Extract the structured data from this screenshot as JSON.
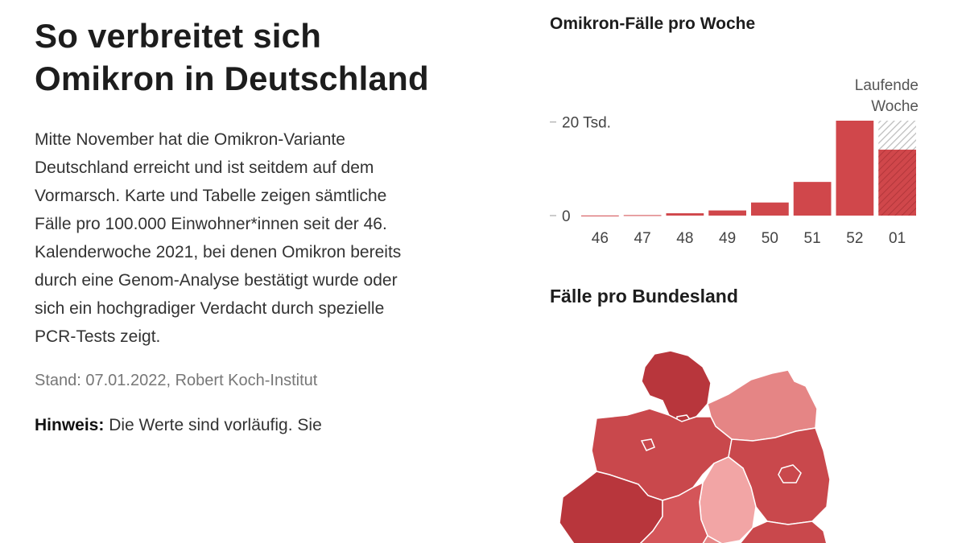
{
  "article": {
    "headline": "So verbreitet sich Omikron in Deutschland",
    "intro": "Mitte November hat die Omikron-Variante Deutschland erreicht und ist seitdem auf dem Vormarsch. Karte und Tabelle zeigen sämtliche Fälle pro 100.000 Einwohner*innen seit der 46. Kalenderwoche 2021, bei denen Omikron bereits durch eine Genom-Analyse bestätigt wurde oder sich ein hochgradiger Verdacht durch spezielle PCR-Tests zeigt.",
    "source": "Stand: 07.01.2022, Robert Koch-Institut",
    "note_label": "Hinweis:",
    "note_text": " Die Werte sind vorläufig. Sie"
  },
  "chart_data": {
    "type": "bar",
    "title": "Omikron-Fälle pro Woche",
    "categories": [
      "46",
      "47",
      "48",
      "49",
      "50",
      "51",
      "52",
      "01"
    ],
    "values": [
      20,
      100,
      500,
      1100,
      2800,
      7200,
      20300,
      14100
    ],
    "ongoing_total": 20300,
    "ongoing_label_line1": "Laufende",
    "ongoing_label_line2": "Woche",
    "yticks": [
      {
        "value": 0,
        "label": "0"
      },
      {
        "value": 20000,
        "label": "20 Tsd."
      }
    ],
    "ylim": [
      0,
      20300
    ],
    "xlabel": "",
    "ylabel": "",
    "colors": {
      "bar": "#d0474b",
      "hatch": "#bdbdbd",
      "tick": "#999999"
    }
  },
  "map": {
    "title": "Fälle pro Bundesland",
    "colors": {
      "darkest": "#b8363c",
      "dark": "#c9484c",
      "medium": "#d45559",
      "light": "#e58585",
      "lightest": "#f2a5a5",
      "border": "#ffffff"
    }
  }
}
